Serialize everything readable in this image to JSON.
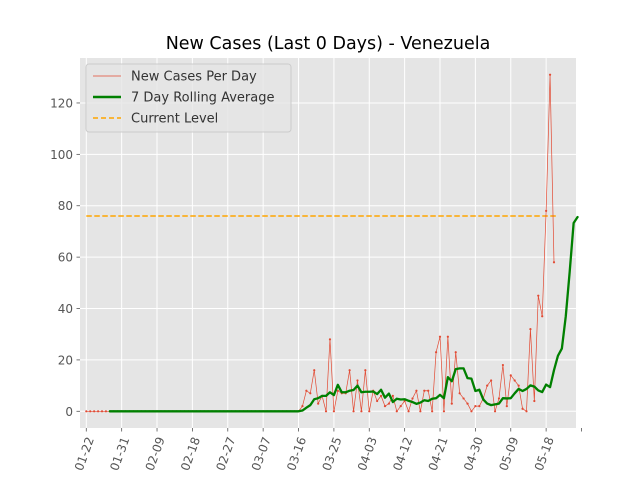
{
  "chart_data": {
    "type": "line",
    "title": "New Cases (Last 0 Days) - Venezuela",
    "xlabel": "",
    "ylabel": "",
    "ylim": [
      -6.5,
      137.5
    ],
    "xlim_day_index": [
      -7.6,
      118.6
    ],
    "y_ticks": [
      0,
      20,
      40,
      60,
      80,
      100,
      120
    ],
    "x_ticks": [
      {
        "label": "01-22",
        "day": -6
      },
      {
        "label": "01-31",
        "day": 3
      },
      {
        "label": "02-09",
        "day": 12
      },
      {
        "label": "02-18",
        "day": 21
      },
      {
        "label": "02-27",
        "day": 30
      },
      {
        "label": "03-07",
        "day": 39
      },
      {
        "label": "03-16",
        "day": 48
      },
      {
        "label": "03-25",
        "day": 57
      },
      {
        "label": "04-03",
        "day": 66
      },
      {
        "label": "04-12",
        "day": 75
      },
      {
        "label": "04-21",
        "day": 84
      },
      {
        "label": "04-30",
        "day": 93
      },
      {
        "label": "05-09",
        "day": 102
      },
      {
        "label": "05-18",
        "day": 111
      },
      {
        "label": "",
        "day": 120
      }
    ],
    "grid": true,
    "legend_position": "top-left",
    "legend": [
      {
        "label": "New Cases Per Day",
        "color": "#E24A33",
        "style": "thin-line-markers"
      },
      {
        "label": "7 Day Rolling Average",
        "color": "#008000",
        "style": "thick-line"
      },
      {
        "label": "Current Level",
        "color": "#FFA500",
        "style": "dashed"
      }
    ],
    "series": [
      {
        "name": "New Cases Per Day",
        "color": "#E24A33",
        "start_day": -6,
        "values": [
          0,
          0,
          0,
          0,
          0,
          0,
          0,
          0,
          0,
          0,
          0,
          0,
          0,
          0,
          0,
          0,
          0,
          0,
          0,
          0,
          0,
          0,
          0,
          0,
          0,
          0,
          0,
          0,
          0,
          0,
          0,
          0,
          0,
          0,
          0,
          0,
          0,
          0,
          0,
          0,
          0,
          0,
          0,
          0,
          0,
          0,
          0,
          0,
          0,
          0,
          0,
          0,
          0,
          0,
          0,
          2,
          8,
          7,
          16,
          3,
          6,
          0,
          28,
          0,
          8,
          7,
          7,
          16,
          0,
          12,
          0,
          16,
          0,
          8,
          4,
          6,
          2,
          3,
          6,
          0,
          2,
          4,
          0,
          5,
          8,
          0,
          8,
          8,
          0,
          23,
          29,
          0,
          29,
          3,
          23,
          7,
          5,
          3,
          0,
          2,
          2,
          5,
          10,
          12,
          0,
          5,
          18,
          2,
          14,
          12,
          10,
          1,
          0,
          32,
          4,
          45,
          37,
          78,
          131,
          58
        ]
      },
      {
        "name": "7 Day Rolling Average",
        "color": "#008000",
        "start_day": 0,
        "values": [
          0,
          0,
          0,
          0,
          0,
          0,
          0,
          0,
          0,
          0,
          0,
          0,
          0,
          0,
          0,
          0,
          0,
          0,
          0,
          0,
          0,
          0,
          0,
          0,
          0,
          0,
          0,
          0,
          0,
          0,
          0,
          0,
          0,
          0,
          0,
          0,
          0,
          0,
          0,
          0,
          0,
          0,
          0,
          0,
          0,
          0,
          0,
          0,
          0,
          0.3,
          1.4,
          2.4,
          4.7,
          5.1,
          6.0,
          6.0,
          7.4,
          6.3,
          10.3,
          7.4,
          7.4,
          8.0,
          8.3,
          10.0,
          7.4,
          7.6,
          7.6,
          7.7,
          6.7,
          8.4,
          5.3,
          6.9,
          3.6,
          4.9,
          4.6,
          4.7,
          4.1,
          3.6,
          2.9,
          3.4,
          4.3,
          4.0,
          4.9,
          5.1,
          6.4,
          5.1,
          13.3,
          11.7,
          16.4,
          16.7,
          16.7,
          12.9,
          12.7,
          7.9,
          8.4,
          4.6,
          3.0,
          2.4,
          2.7,
          3.0,
          5.1,
          5.0,
          5.1,
          7.0,
          8.7,
          7.9,
          8.7,
          10.1,
          9.6,
          8.1,
          7.5,
          10.4,
          9.4,
          16.0,
          21.6,
          24.4,
          37.0,
          54.4,
          73.3,
          75.6
        ]
      },
      {
        "name": "Current Level",
        "color": "#FFA500",
        "from_day": -6,
        "to_day": 114,
        "value": 76
      }
    ]
  }
}
